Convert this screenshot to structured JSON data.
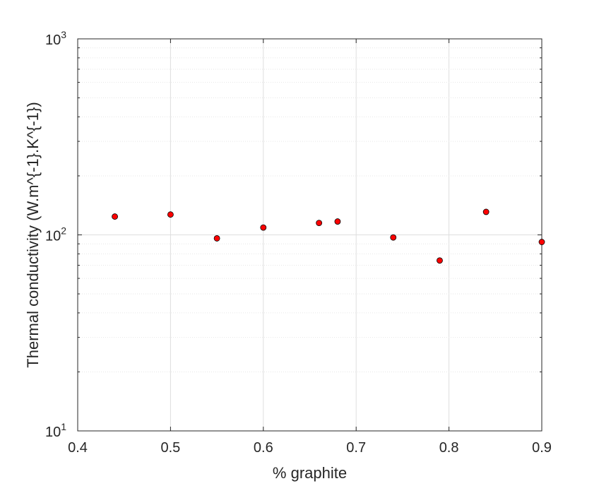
{
  "chart_data": {
    "type": "scatter",
    "title": "",
    "xlabel": "% graphite",
    "ylabel": "Thermal conductivity (W.m^{-1}.K^{-1})",
    "xlim": [
      0.4,
      0.9
    ],
    "ylim": [
      10,
      1000
    ],
    "yscale": "log",
    "grid": true,
    "x_ticks": [
      "0.4",
      "0.5",
      "0.6",
      "0.7",
      "0.8",
      "0.9"
    ],
    "y_ticks": [
      {
        "base": "10",
        "exp": "1"
      },
      {
        "base": "10",
        "exp": "2"
      },
      {
        "base": "10",
        "exp": "3"
      }
    ],
    "marker_color": "#ff0000",
    "series": [
      {
        "x": [
          0.44,
          0.5,
          0.55,
          0.6,
          0.66,
          0.68,
          0.74,
          0.79,
          0.84,
          0.9
        ],
        "y": [
          124,
          127,
          96,
          109,
          115,
          117,
          97,
          74,
          131,
          92
        ]
      }
    ]
  }
}
